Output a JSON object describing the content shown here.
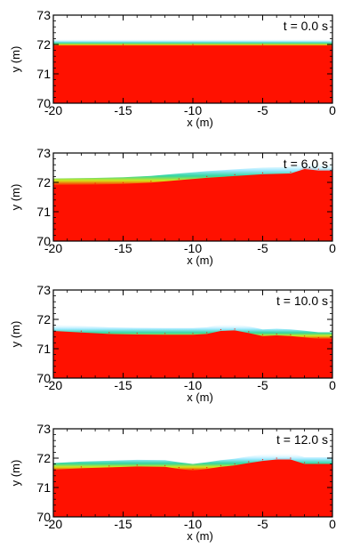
{
  "chart_data": [
    {
      "type": "area",
      "annotation": "t = 0.0 s",
      "xlabel": "x (m)",
      "ylabel": "y (m)",
      "xlim": [
        -20,
        0
      ],
      "ylim": [
        70,
        73
      ],
      "x_ticks": [
        "-20",
        "-15",
        "-10",
        "-5",
        "0"
      ],
      "y_ticks": [
        "70",
        "71",
        "72",
        "73"
      ],
      "x": [
        -20,
        -15,
        -10,
        -5,
        0
      ],
      "y": [
        72.0,
        72.0,
        72.0,
        72.0,
        72.0
      ]
    },
    {
      "type": "area",
      "annotation": "t = 6.0 s",
      "xlabel": "x (m)",
      "ylabel": "y (m)",
      "xlim": [
        -20,
        0
      ],
      "ylim": [
        70,
        73
      ],
      "x_ticks": [
        "-20",
        "-15",
        "-10",
        "-5",
        "0"
      ],
      "y_ticks": [
        "70",
        "71",
        "72",
        "73"
      ],
      "x": [
        -20,
        -17,
        -15,
        -13,
        -11,
        -9,
        -7,
        -5,
        -3,
        -2,
        -1,
        0
      ],
      "y": [
        71.95,
        71.97,
        71.99,
        72.04,
        72.12,
        72.2,
        72.26,
        72.32,
        72.35,
        72.5,
        72.45,
        72.45
      ]
    },
    {
      "type": "area",
      "annotation": "t = 10.0 s",
      "xlabel": "x (m)",
      "ylabel": "y (m)",
      "xlim": [
        -20,
        0
      ],
      "ylim": [
        70,
        73
      ],
      "x_ticks": [
        "-20",
        "-15",
        "-10",
        "-5",
        "0"
      ],
      "y_ticks": [
        "70",
        "71",
        "72",
        "73"
      ],
      "x": [
        -20,
        -18,
        -16,
        -14,
        -12,
        -10,
        -9,
        -8,
        -7,
        -6,
        -5,
        -4,
        -3,
        -2,
        -1,
        0
      ],
      "y": [
        71.65,
        71.6,
        71.55,
        71.53,
        71.52,
        71.52,
        71.55,
        71.65,
        71.67,
        71.58,
        71.48,
        71.5,
        71.48,
        71.43,
        71.38,
        71.38
      ]
    },
    {
      "type": "area",
      "annotation": "t = 12.0 s",
      "xlabel": "x (m)",
      "ylabel": "y (m)",
      "xlim": [
        -20,
        0
      ],
      "ylim": [
        70,
        73
      ],
      "x_ticks": [
        "-20",
        "-15",
        "-10",
        "-5",
        "0"
      ],
      "y_ticks": [
        "70",
        "71",
        "72",
        "73"
      ],
      "x": [
        -20,
        -18,
        -16,
        -14,
        -12,
        -11,
        -10,
        -9,
        -8,
        -7,
        -6,
        -5,
        -4,
        -3,
        -2,
        -1,
        0
      ],
      "y": [
        71.65,
        71.7,
        71.73,
        71.76,
        71.75,
        71.68,
        71.62,
        71.68,
        71.75,
        71.8,
        71.88,
        71.95,
        72.0,
        72.0,
        71.85,
        71.85,
        71.85
      ]
    }
  ]
}
